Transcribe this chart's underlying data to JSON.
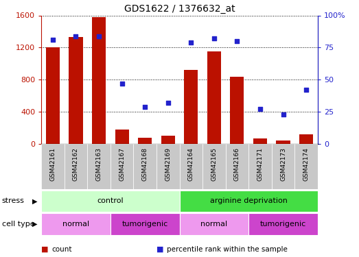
{
  "title": "GDS1622 / 1376632_at",
  "samples": [
    "GSM42161",
    "GSM42162",
    "GSM42163",
    "GSM42167",
    "GSM42168",
    "GSM42169",
    "GSM42164",
    "GSM42165",
    "GSM42166",
    "GSM42171",
    "GSM42173",
    "GSM42174"
  ],
  "counts": [
    1205,
    1330,
    1580,
    175,
    75,
    100,
    920,
    1155,
    840,
    65,
    40,
    120
  ],
  "percentile_ranks": [
    81,
    84,
    84,
    47,
    29,
    32,
    79,
    82,
    80,
    27,
    23,
    42
  ],
  "ylim_left": [
    0,
    1600
  ],
  "ylim_right": [
    0,
    100
  ],
  "yticks_left": [
    0,
    400,
    800,
    1200,
    1600
  ],
  "yticks_right": [
    0,
    25,
    50,
    75,
    100
  ],
  "yticklabels_right": [
    "0",
    "25",
    "50",
    "75",
    "100%"
  ],
  "bar_color": "#bb1100",
  "dot_color": "#2222cc",
  "stress_groups": [
    {
      "label": "control",
      "start": 0,
      "end": 6,
      "color": "#ccffcc"
    },
    {
      "label": "arginine deprivation",
      "start": 6,
      "end": 12,
      "color": "#44dd44"
    }
  ],
  "cell_type_groups": [
    {
      "label": "normal",
      "start": 0,
      "end": 3,
      "color": "#ee99ee"
    },
    {
      "label": "tumorigenic",
      "start": 3,
      "end": 6,
      "color": "#cc44cc"
    },
    {
      "label": "normal",
      "start": 6,
      "end": 9,
      "color": "#ee99ee"
    },
    {
      "label": "tumorigenic",
      "start": 9,
      "end": 12,
      "color": "#cc44cc"
    }
  ],
  "legend_items": [
    {
      "label": "count",
      "color": "#bb1100"
    },
    {
      "label": "percentile rank within the sample",
      "color": "#2222cc"
    }
  ],
  "stress_label": "stress",
  "cell_type_label": "cell type",
  "tick_label_bg": "#c8c8c8",
  "plot_bg": "#ffffff"
}
